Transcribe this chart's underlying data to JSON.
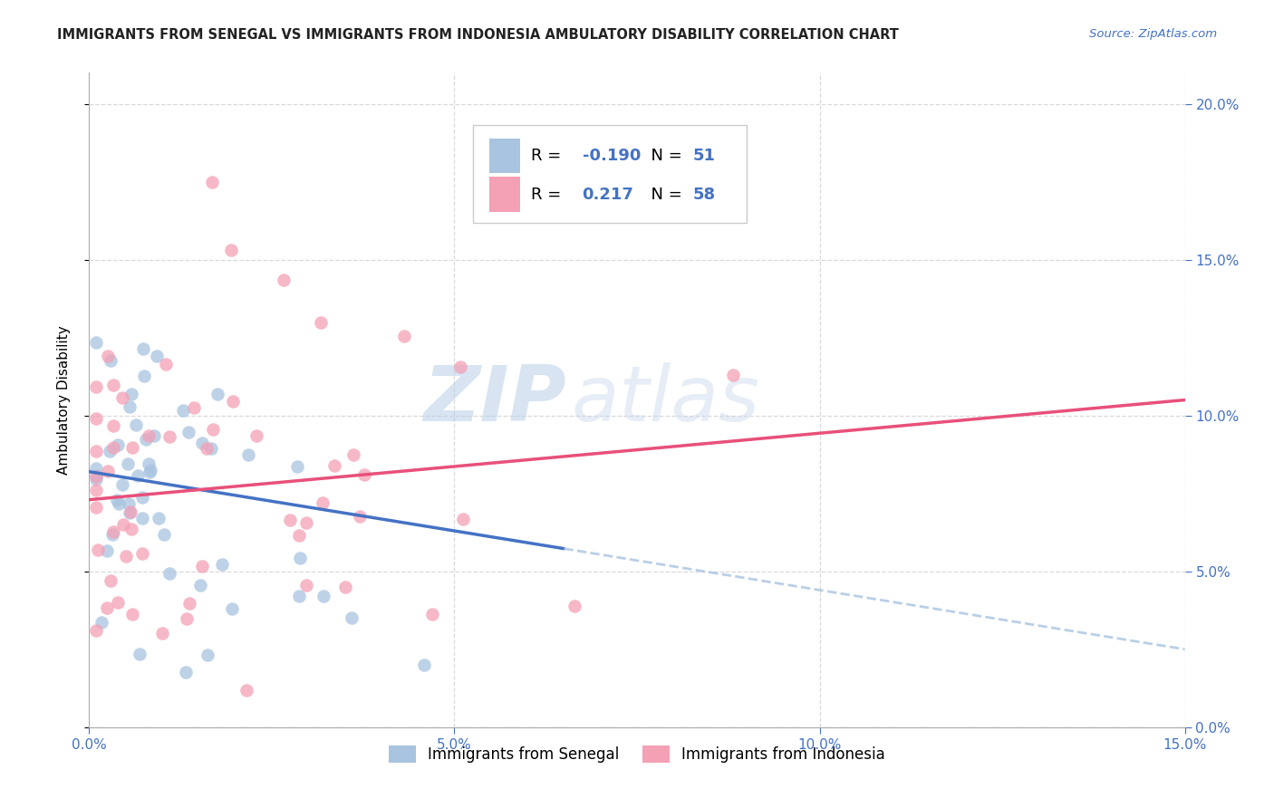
{
  "title": "IMMIGRANTS FROM SENEGAL VS IMMIGRANTS FROM INDONESIA AMBULATORY DISABILITY CORRELATION CHART",
  "source": "Source: ZipAtlas.com",
  "ylabel": "Ambulatory Disability",
  "xlim": [
    0.0,
    0.15
  ],
  "ylim": [
    0.0,
    0.21
  ],
  "xtick_vals": [
    0.0,
    0.05,
    0.1,
    0.15
  ],
  "ytick_vals": [
    0.0,
    0.05,
    0.1,
    0.15,
    0.2
  ],
  "r_senegal": -0.19,
  "n_senegal": 51,
  "r_indonesia": 0.217,
  "n_indonesia": 58,
  "color_senegal": "#a8c4e0",
  "color_indonesia": "#f4a0b5",
  "trendline_senegal_solid": "#4472c4",
  "trendline_senegal_dash": "#a8c4e0",
  "trendline_indonesia": "#e8507a",
  "watermark_zip": "ZIP",
  "watermark_atlas": "atlas",
  "background_color": "#ffffff",
  "grid_color": "#d0d0d0",
  "tick_color": "#4472c4",
  "title_color": "#222222",
  "legend_r1_val": "-0.190",
  "legend_n1_val": "51",
  "legend_r2_val": "0.217",
  "legend_n2_val": "58",
  "senegal_label": "Immigrants from Senegal",
  "indonesia_label": "Immigrants from Indonesia",
  "trendline_s_x0": 0.0,
  "trendline_s_y0": 0.082,
  "trendline_s_x1": 0.15,
  "trendline_s_y1": 0.025,
  "trendline_s_solid_end": 0.065,
  "trendline_i_x0": 0.0,
  "trendline_i_y0": 0.073,
  "trendline_i_x1": 0.15,
  "trendline_i_y1": 0.105
}
